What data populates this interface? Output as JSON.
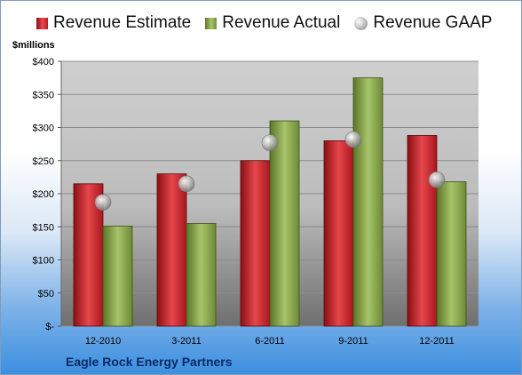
{
  "legend": {
    "estimate": "Revenue Estimate",
    "actual": "Revenue Actual",
    "gaap": "Revenue GAAP"
  },
  "unit_label": "$millions",
  "company_name": "Eagle Rock Energy Partners",
  "colors": {
    "estimate": "#d42027",
    "actual": "#8fab4c",
    "gaap": "#b8b8b8"
  },
  "chart_data": {
    "type": "bar",
    "categories": [
      "12-2010",
      "3-2011",
      "6-2011",
      "9-2011",
      "12-2011"
    ],
    "series": [
      {
        "name": "Revenue Estimate",
        "type": "bar",
        "values": [
          215,
          230,
          250,
          280,
          288
        ]
      },
      {
        "name": "Revenue Actual",
        "type": "bar",
        "values": [
          151,
          155,
          310,
          375,
          218
        ]
      },
      {
        "name": "Revenue GAAP",
        "type": "scatter",
        "values": [
          187,
          215,
          277,
          282,
          221
        ]
      }
    ],
    "yticks": [
      "$-",
      "$50",
      "$100",
      "$150",
      "$200",
      "$250",
      "$300",
      "$350",
      "$400"
    ],
    "ylim": [
      0,
      400
    ],
    "ylabel": "$millions",
    "legend_position": "top",
    "grid": true
  }
}
